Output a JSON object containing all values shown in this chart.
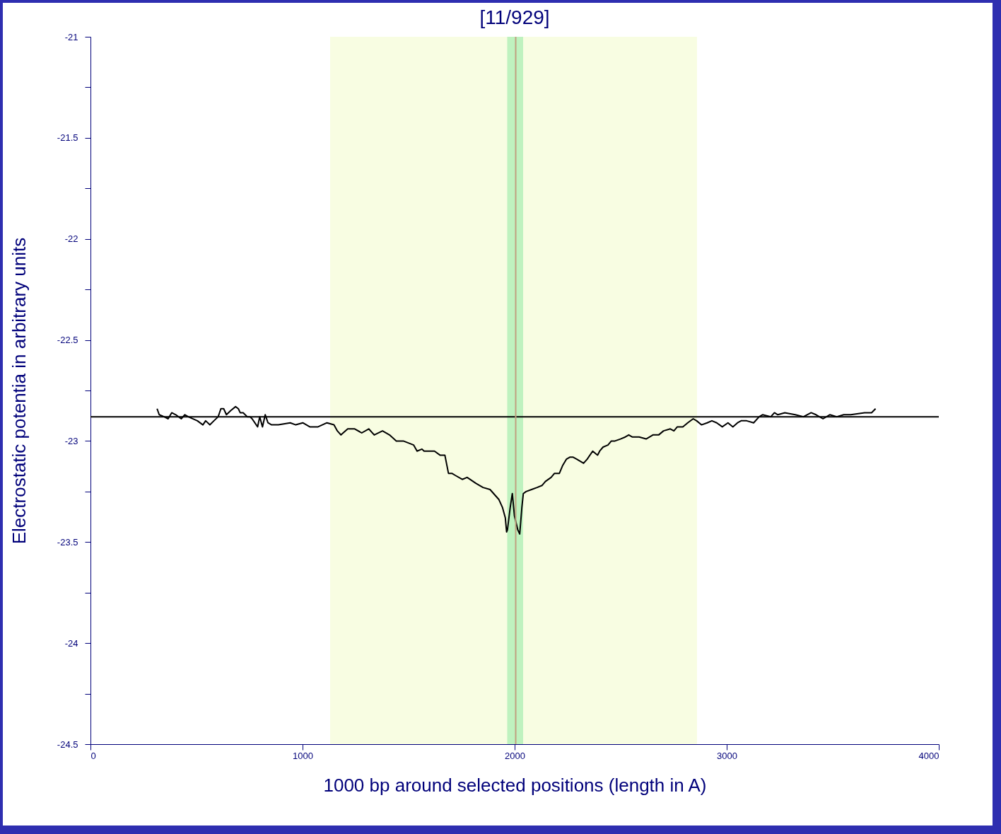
{
  "chart_data": {
    "type": "line",
    "title": "[11/929]",
    "xlabel": "1000 bp around selected positions (length in A)",
    "ylabel": "Electrostatic potentia in arbitrary units",
    "xlim": [
      0,
      4000
    ],
    "xticks": [
      0,
      1000,
      2000,
      3000,
      4000
    ],
    "ylim": [
      -24.5,
      -21
    ],
    "yticks": [
      -21,
      {
        "value": -21.25,
        "label": null
      },
      -21.5,
      {
        "value": -21.75,
        "label": null
      },
      -22,
      {
        "value": -22.25,
        "label": null
      },
      -22.5,
      {
        "value": -22.75,
        "label": null
      },
      -23,
      {
        "value": -23.25,
        "label": null
      },
      -23.5,
      {
        "value": -23.75,
        "label": null
      },
      -24,
      {
        "value": -24.25,
        "label": null
      },
      -24.5
    ],
    "grid": false,
    "marker": "none",
    "line_style": "solid",
    "bands": [
      {
        "axis": "x",
        "from": 1130,
        "to": 2860,
        "color": "#f8fde2"
      },
      {
        "axis": "x",
        "from": 1965,
        "to": 2040,
        "color": "#bff2bf"
      }
    ],
    "ref_lines": [
      {
        "axis": "y",
        "value": -22.88,
        "color": "#000000"
      },
      {
        "axis": "x",
        "value": 2005,
        "color": "#c0a080"
      }
    ],
    "x": [
      314,
      324,
      347,
      366,
      383,
      402,
      428,
      445,
      461,
      504,
      530,
      543,
      563,
      582,
      602,
      615,
      628,
      641,
      661,
      684,
      697,
      706,
      720,
      739,
      752,
      762,
      788,
      798,
      811,
      824,
      837,
      854,
      886,
      942,
      968,
      1001,
      1034,
      1073,
      1115,
      1148,
      1164,
      1181,
      1213,
      1246,
      1279,
      1312,
      1338,
      1377,
      1410,
      1442,
      1475,
      1524,
      1540,
      1563,
      1573,
      1590,
      1622,
      1648,
      1671,
      1688,
      1704,
      1720,
      1753,
      1776,
      1818,
      1835,
      1851,
      1884,
      1926,
      1943,
      1956,
      1962,
      1966,
      1979,
      1989,
      1999,
      2015,
      2024,
      2034,
      2041,
      2054,
      2080,
      2106,
      2129,
      2145,
      2172,
      2188,
      2211,
      2227,
      2244,
      2260,
      2276,
      2293,
      2325,
      2342,
      2368,
      2391,
      2401,
      2417,
      2440,
      2456,
      2473,
      2499,
      2522,
      2538,
      2554,
      2587,
      2620,
      2652,
      2679,
      2702,
      2734,
      2751,
      2767,
      2793,
      2816,
      2842,
      2858,
      2881,
      2908,
      2930,
      2953,
      2979,
      3006,
      3029,
      3051,
      3068,
      3094,
      3127,
      3153,
      3169,
      3208,
      3225,
      3241,
      3274,
      3323,
      3362,
      3398,
      3421,
      3454,
      3486,
      3519,
      3552,
      3585,
      3650,
      3683,
      3702
    ],
    "series": [
      {
        "color": "#000000",
        "values": [
          -22.84,
          -22.87,
          -22.88,
          -22.89,
          -22.86,
          -22.87,
          -22.89,
          -22.87,
          -22.88,
          -22.9,
          -22.92,
          -22.9,
          -22.92,
          -22.9,
          -22.88,
          -22.84,
          -22.84,
          -22.87,
          -22.85,
          -22.83,
          -22.84,
          -22.86,
          -22.86,
          -22.88,
          -22.88,
          -22.89,
          -22.93,
          -22.88,
          -22.93,
          -22.87,
          -22.91,
          -22.92,
          -22.92,
          -22.91,
          -22.92,
          -22.91,
          -22.93,
          -22.93,
          -22.91,
          -22.92,
          -22.95,
          -22.97,
          -22.94,
          -22.94,
          -22.96,
          -22.94,
          -22.97,
          -22.95,
          -22.97,
          -23.0,
          -23.0,
          -23.02,
          -23.05,
          -23.04,
          -23.05,
          -23.05,
          -23.05,
          -23.07,
          -23.07,
          -23.16,
          -23.16,
          -23.17,
          -23.19,
          -23.18,
          -23.21,
          -23.22,
          -23.23,
          -23.24,
          -23.29,
          -23.33,
          -23.38,
          -23.45,
          -23.44,
          -23.33,
          -23.26,
          -23.37,
          -23.44,
          -23.46,
          -23.33,
          -23.26,
          -23.25,
          -23.24,
          -23.23,
          -23.22,
          -23.2,
          -23.18,
          -23.16,
          -23.16,
          -23.12,
          -23.09,
          -23.08,
          -23.08,
          -23.09,
          -23.11,
          -23.09,
          -23.05,
          -23.07,
          -23.05,
          -23.03,
          -23.02,
          -23.0,
          -23.0,
          -22.99,
          -22.98,
          -22.97,
          -22.98,
          -22.98,
          -22.99,
          -22.97,
          -22.97,
          -22.95,
          -22.94,
          -22.95,
          -22.93,
          -22.93,
          -22.91,
          -22.89,
          -22.9,
          -22.92,
          -22.91,
          -22.9,
          -22.91,
          -22.93,
          -22.91,
          -22.93,
          -22.91,
          -22.9,
          -22.9,
          -22.91,
          -22.88,
          -22.87,
          -22.88,
          -22.86,
          -22.87,
          -22.86,
          -22.87,
          -22.88,
          -22.86,
          -22.87,
          -22.89,
          -22.87,
          -22.88,
          -22.87,
          -22.87,
          -22.86,
          -22.86,
          -22.84
        ]
      }
    ]
  }
}
